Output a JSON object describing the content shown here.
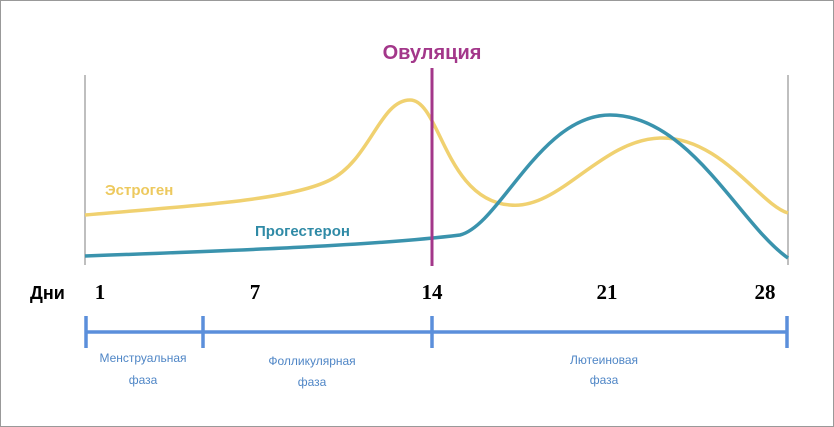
{
  "title": "Овуляция",
  "curve_labels": {
    "estrogen": "Эстроген",
    "progesterone": "Прогестерон"
  },
  "axis": {
    "label": "Дни",
    "ticks": [
      "1",
      "7",
      "14",
      "21",
      "28"
    ]
  },
  "phases": [
    {
      "lines": [
        "Менструальная",
        "фаза"
      ]
    },
    {
      "lines": [
        "Фолликулярная",
        "фаза"
      ]
    },
    {
      "lines": [
        "Лютеиновая",
        "фаза"
      ]
    }
  ]
}
